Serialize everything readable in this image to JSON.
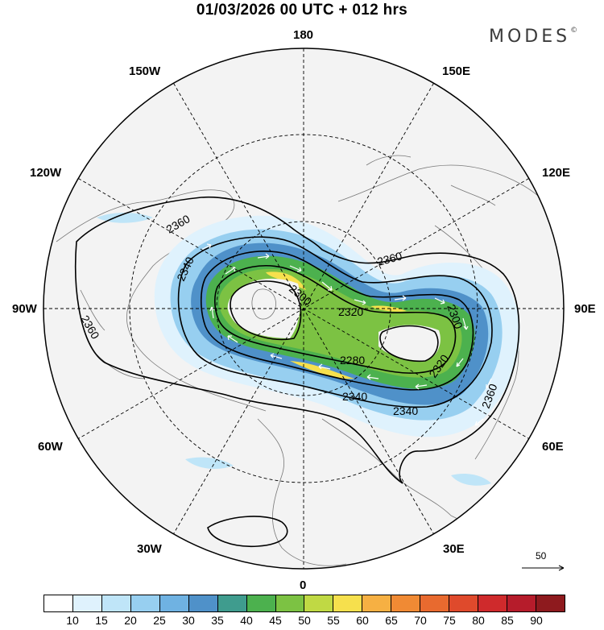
{
  "header": {
    "title": "01/03/2026  00 UTC  + 012 hrs",
    "brand": "MODES",
    "brand_mark": "©"
  },
  "map": {
    "projection": "north-polar-stereographic",
    "longitude_labels": {
      "top": "180",
      "bottom": "0",
      "left": "90W",
      "right": "90E",
      "upper_left_1": "150W",
      "upper_left_2": "120W",
      "upper_right_1": "150E",
      "upper_right_2": "120E",
      "lower_left_1": "60W",
      "lower_left_2": "30W",
      "lower_right_1": "60E",
      "lower_right_2": "30E"
    },
    "contour_labels": [
      {
        "text": "2360"
      },
      {
        "text": "2340"
      },
      {
        "text": "2360"
      },
      {
        "text": "2300"
      },
      {
        "text": "2320"
      },
      {
        "text": "2360"
      },
      {
        "text": "2300"
      },
      {
        "text": "2280"
      },
      {
        "text": "2320"
      },
      {
        "text": "2340"
      },
      {
        "text": "2340"
      },
      {
        "text": "2360"
      }
    ],
    "wind_reference": "50"
  },
  "colorbar": {
    "colors": [
      "#ffffff",
      "#dff2fd",
      "#bfe5f8",
      "#97cff0",
      "#6fb2e2",
      "#4f91c9",
      "#3f9c8e",
      "#4cb14e",
      "#7cc243",
      "#c0d944",
      "#f6e04d",
      "#f6b043",
      "#f08a34",
      "#e86a2f",
      "#df4a2c",
      "#cf2a2c",
      "#b61c2b",
      "#8e1a1e"
    ],
    "ticks": [
      "10",
      "15",
      "20",
      "25",
      "30",
      "35",
      "40",
      "45",
      "50",
      "55",
      "60",
      "65",
      "70",
      "75",
      "80",
      "85",
      "90"
    ]
  }
}
